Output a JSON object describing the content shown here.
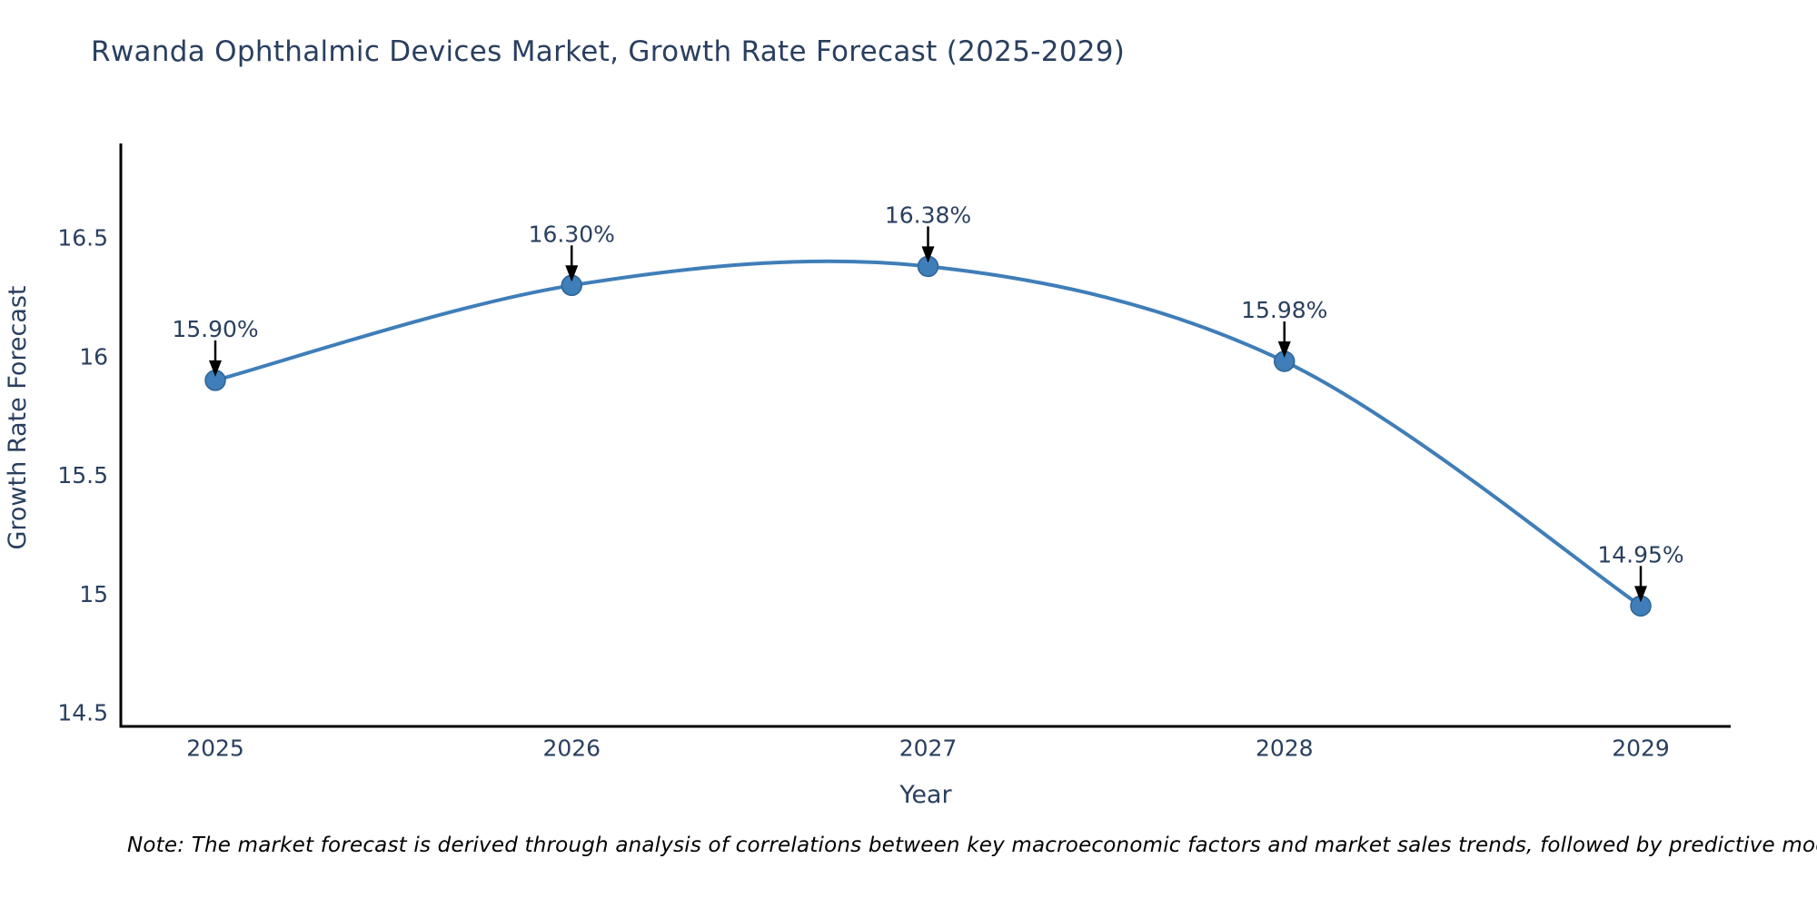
{
  "title": "Rwanda Ophthalmic Devices Market, Growth Rate Forecast (2025-2029)",
  "note": "Note: The market forecast is derived through analysis of correlations between key macroeconomic factors and market sales trends, followed by predictive modeling to project future sal",
  "colors": {
    "line": "#3f7eb8",
    "marker_fill": "#3f7eb8",
    "marker_edge": "#2e6496",
    "text": "#2a3f5f",
    "axis": "#000000",
    "annotation_arrow": "#000000",
    "note_text": "#000000",
    "background": "#ffffff"
  },
  "chart_data": {
    "type": "line",
    "title": "Rwanda Ophthalmic Devices Market, Growth Rate Forecast (2025-2029)",
    "xlabel": "Year",
    "ylabel": "Growth Rate Forecast",
    "x": [
      "2025",
      "2026",
      "2027",
      "2028",
      "2029"
    ],
    "series": [
      {
        "name": "Growth Rate Forecast",
        "values": [
          15.9,
          16.3,
          16.38,
          15.98,
          14.95
        ]
      }
    ],
    "point_labels": [
      "15.90%",
      "16.30%",
      "16.38%",
      "15.98%",
      "14.95%"
    ],
    "yticks": [
      14.5,
      15,
      15.5,
      16,
      16.5
    ],
    "ylim": [
      14.4,
      16.95
    ],
    "grid": false,
    "legend": false,
    "line_shape": "spline",
    "annotation_style": "arrow-down-to-point"
  }
}
